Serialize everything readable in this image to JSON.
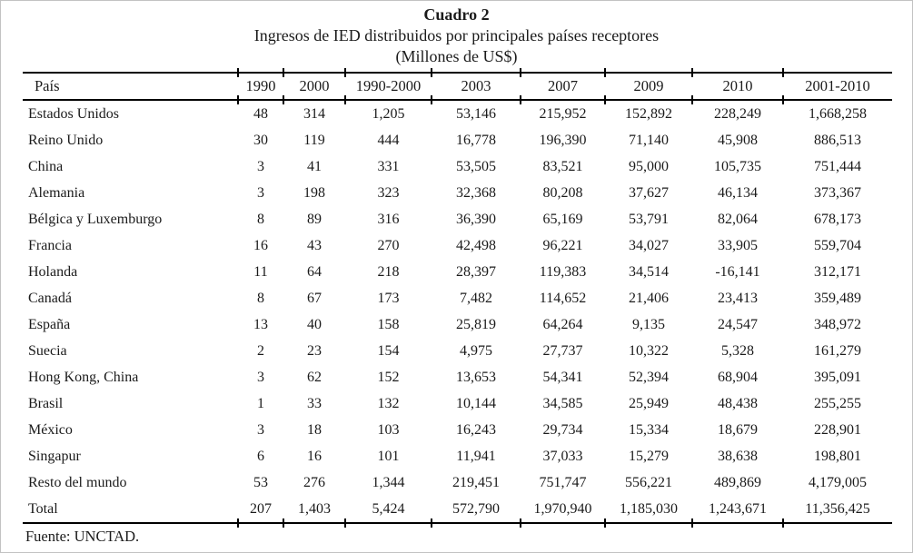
{
  "caption": {
    "number": "Cuadro 2",
    "title": "Ingresos de IED distribuidos por principales países receptores",
    "unit": "(Millones de US$)"
  },
  "table": {
    "columns": [
      "País",
      "1990",
      "2000",
      "1990-2000",
      "2003",
      "2007",
      "2009",
      "2010",
      "2001-2010"
    ],
    "rows": [
      [
        "Estados Unidos",
        "48",
        "314",
        "1,205",
        "53,146",
        "215,952",
        "152,892",
        "228,249",
        "1,668,258"
      ],
      [
        "Reino Unido",
        "30",
        "119",
        "444",
        "16,778",
        "196,390",
        "71,140",
        "45,908",
        "886,513"
      ],
      [
        "China",
        "3",
        "41",
        "331",
        "53,505",
        "83,521",
        "95,000",
        "105,735",
        "751,444"
      ],
      [
        "Alemania",
        "3",
        "198",
        "323",
        "32,368",
        "80,208",
        "37,627",
        "46,134",
        "373,367"
      ],
      [
        "Bélgica y Luxemburgo",
        "8",
        "89",
        "316",
        "36,390",
        "65,169",
        "53,791",
        "82,064",
        "678,173"
      ],
      [
        "Francia",
        "16",
        "43",
        "270",
        "42,498",
        "96,221",
        "34,027",
        "33,905",
        "559,704"
      ],
      [
        "Holanda",
        "11",
        "64",
        "218",
        "28,397",
        "119,383",
        "34,514",
        "-16,141",
        "312,171"
      ],
      [
        "Canadá",
        "8",
        "67",
        "173",
        "7,482",
        "114,652",
        "21,406",
        "23,413",
        "359,489"
      ],
      [
        "España",
        "13",
        "40",
        "158",
        "25,819",
        "64,264",
        "9,135",
        "24,547",
        "348,972"
      ],
      [
        "Suecia",
        "2",
        "23",
        "154",
        "4,975",
        "27,737",
        "10,322",
        "5,328",
        "161,279"
      ],
      [
        "Hong Kong, China",
        "3",
        "62",
        "152",
        "13,653",
        "54,341",
        "52,394",
        "68,904",
        "395,091"
      ],
      [
        "Brasil",
        "1",
        "33",
        "132",
        "10,144",
        "34,585",
        "25,949",
        "48,438",
        "255,255"
      ],
      [
        "México",
        "3",
        "18",
        "103",
        "16,243",
        "29,734",
        "15,334",
        "18,679",
        "228,901"
      ],
      [
        "Singapur",
        "6",
        "16",
        "101",
        "11,941",
        "37,033",
        "15,279",
        "38,638",
        "198,801"
      ],
      [
        "Resto del mundo",
        "53",
        "276",
        "1,344",
        "219,451",
        "751,747",
        "556,221",
        "489,869",
        "4,179,005"
      ]
    ],
    "total_row": [
      "Total",
      "207",
      "1,403",
      "5,424",
      "572,790",
      "1,970,940",
      "1,185,030",
      "1,243,671",
      "11,356,425"
    ]
  },
  "source": "Fuente: UNCTAD."
}
